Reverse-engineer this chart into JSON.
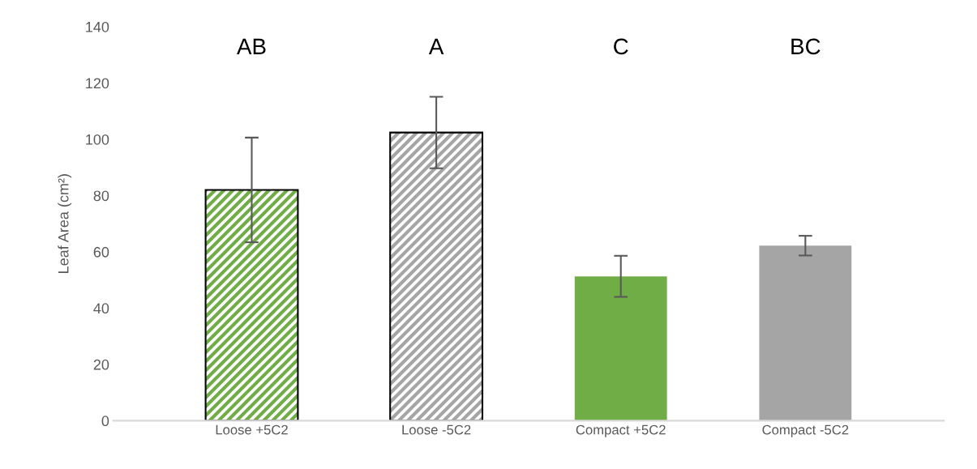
{
  "chart_data": {
    "type": "bar",
    "ylabel": "Leaf Area (cm²)",
    "categories": [
      "Loose +5C2",
      "Loose -5C2",
      "Compact +5C2",
      "Compact -5C2"
    ],
    "values": [
      82,
      102.4,
      51.3,
      62.2
    ],
    "errors": [
      18.6,
      12.7,
      7.3,
      3.5
    ],
    "colors": [
      "#70ad47",
      "#a5a5a5",
      "#70ad47",
      "#a5a5a5"
    ],
    "ylim": [
      0,
      140
    ],
    "yticks": [
      0,
      20,
      40,
      60,
      80,
      100,
      120,
      140
    ],
    "grid": false,
    "annotations": [
      "AB",
      "A",
      "C",
      "BC"
    ]
  }
}
